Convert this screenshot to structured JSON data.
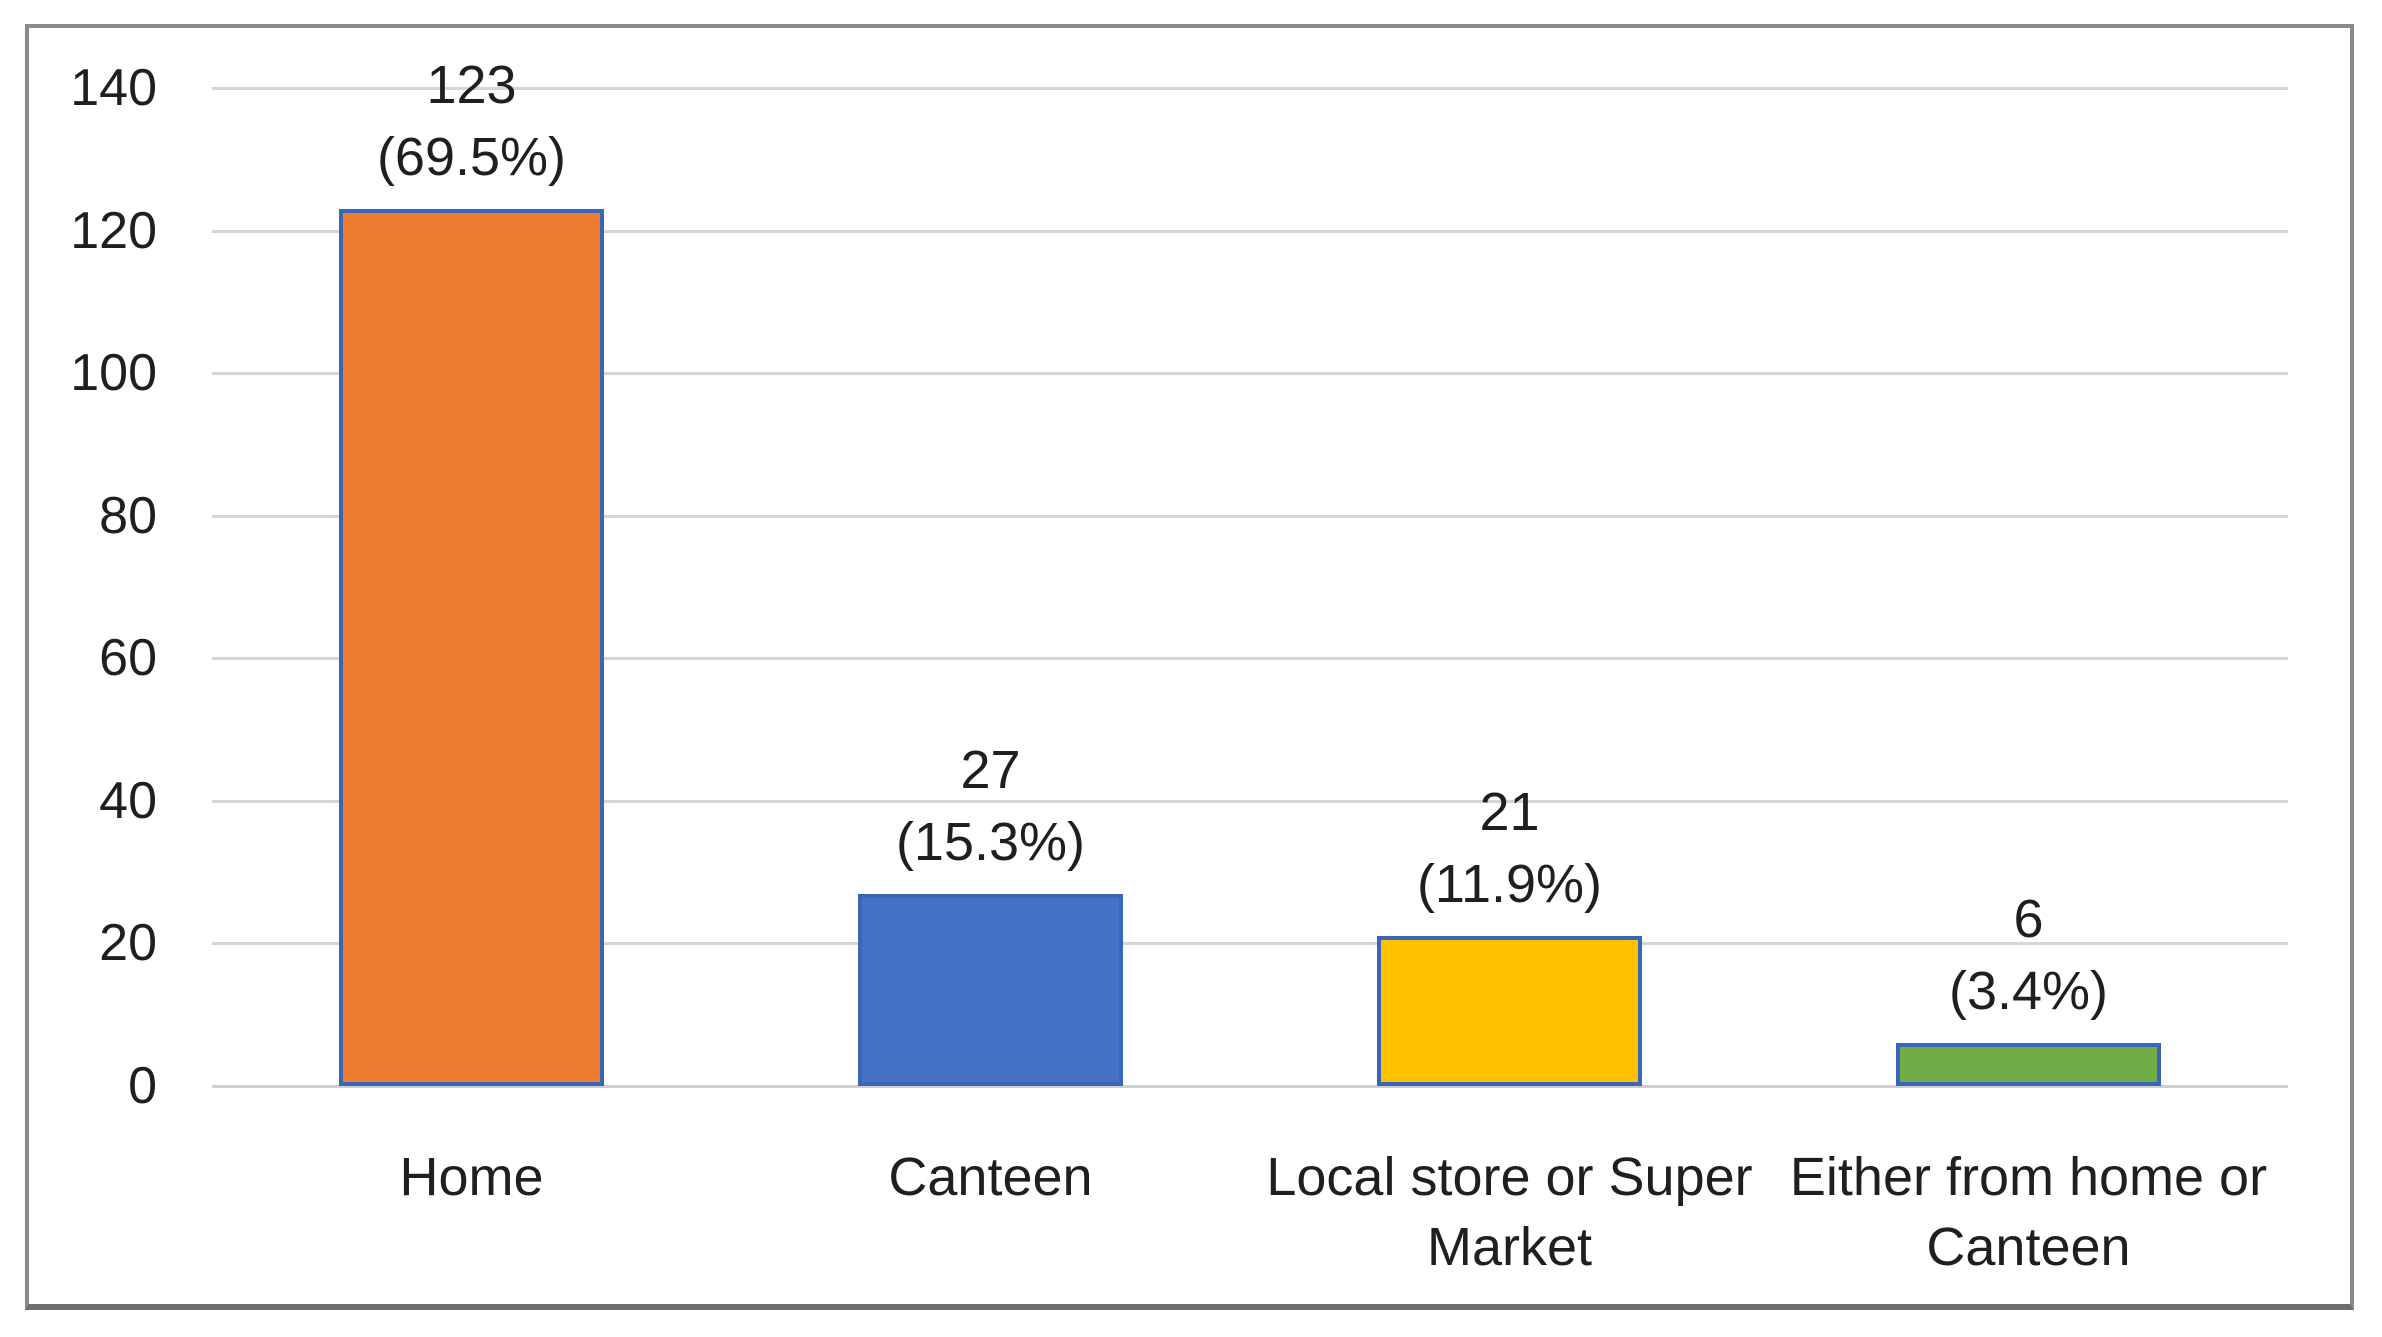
{
  "chart_data": {
    "type": "bar",
    "title": "",
    "xlabel": "",
    "ylabel": "",
    "categories": [
      "Home",
      "Canteen",
      "Local store or Super Market",
      "Either from home or Canteen"
    ],
    "values": [
      123,
      27,
      21,
      6
    ],
    "data_labels": [
      {
        "value": "123",
        "pct": "(69.5%)"
      },
      {
        "value": "27",
        "pct": "(15.3%)"
      },
      {
        "value": "21",
        "pct": "(11.9%)"
      },
      {
        "value": "6",
        "pct": "(3.4%)"
      }
    ],
    "bar_colors": [
      "#ED7D31",
      "#4472C4",
      "#FFC000",
      "#70AD47"
    ],
    "bar_border_color": "#3A66B8",
    "y_ticks": [
      0,
      20,
      40,
      60,
      80,
      100,
      120,
      140
    ],
    "ylim": [
      0,
      140
    ],
    "grid": true,
    "gridline_color": "#D6D6D6",
    "baseline_color": "#CFCFCF",
    "text_color": "#1F1F1F",
    "frame_border_color": "#8A8A8A",
    "legend": "none"
  }
}
